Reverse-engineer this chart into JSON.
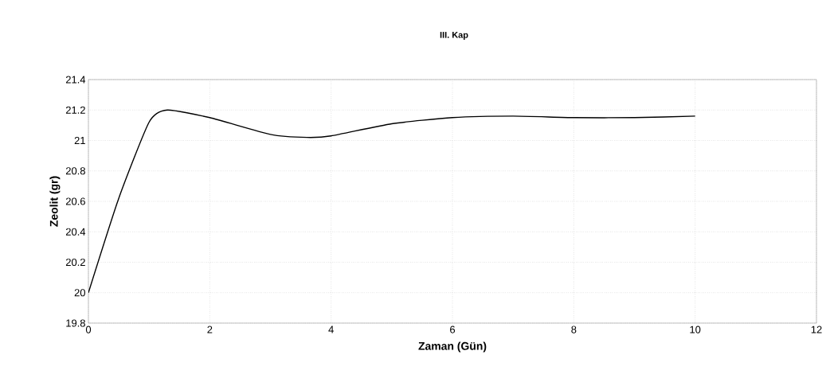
{
  "chart_data": {
    "type": "line",
    "title": "III. Kap",
    "xlabel": "Zaman (Gün)",
    "ylabel": "Zeolit (gr)",
    "xlim": [
      0,
      12
    ],
    "xticks": [
      0,
      2,
      4,
      6,
      8,
      10,
      12
    ],
    "ylim": [
      19.8,
      21.4
    ],
    "yticks": [
      19.8,
      20,
      20.2,
      20.4,
      20.6,
      20.8,
      21,
      21.2,
      21.4
    ],
    "grid": true,
    "series": [
      {
        "color": "#000000",
        "x": [
          0,
          0.5,
          1,
          1.3,
          2,
          3,
          3.6,
          4,
          5,
          6,
          7,
          8,
          9,
          10
        ],
        "values": [
          20.0,
          20.62,
          21.12,
          21.2,
          21.15,
          21.04,
          21.02,
          21.03,
          21.11,
          21.15,
          21.16,
          21.15,
          21.15,
          21.16
        ]
      }
    ]
  }
}
